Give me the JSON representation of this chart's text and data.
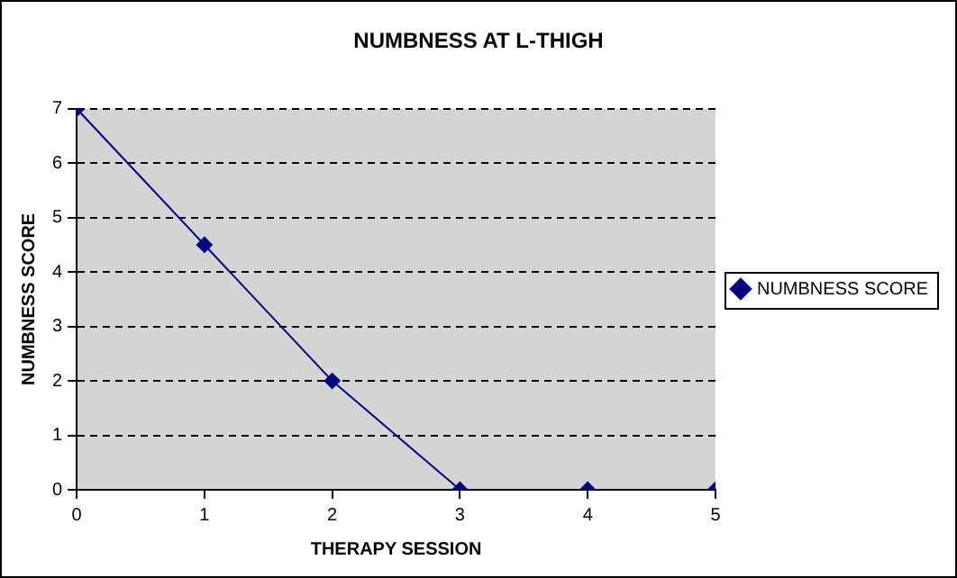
{
  "chart_data": {
    "type": "line",
    "title": "NUMBNESS AT L-THIGH",
    "xlabel": "THERAPY SESSION",
    "ylabel": "NUMBNESS SCORE",
    "x": [
      0,
      1,
      2,
      3,
      4,
      5
    ],
    "series": [
      {
        "name": "NUMBNESS SCORE",
        "color": "#000080",
        "values": [
          7,
          4.5,
          2,
          0,
          0,
          0
        ]
      }
    ],
    "xlim": [
      0,
      5
    ],
    "xticks": [
      0,
      1,
      2,
      3,
      4,
      5
    ],
    "ylim": [
      0,
      7
    ],
    "yticks": [
      0,
      1,
      2,
      3,
      4,
      5,
      6,
      7
    ],
    "grid": "y",
    "legend": "right",
    "marker": "diamond",
    "line_style": "solid"
  }
}
